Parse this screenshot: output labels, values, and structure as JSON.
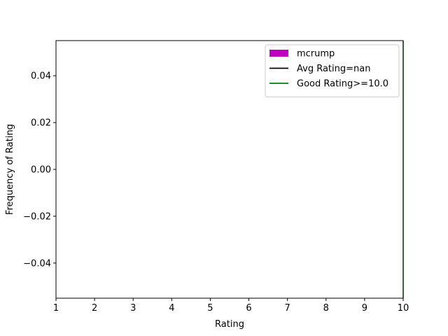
{
  "chart_data": {
    "type": "bar",
    "xlabel": "Rating",
    "ylabel": "Frequency of Rating",
    "xlim": [
      1,
      10
    ],
    "ylim": [
      -0.055,
      0.055
    ],
    "x_ticks": [
      1,
      2,
      3,
      4,
      5,
      6,
      7,
      8,
      9,
      10
    ],
    "y_ticks": [
      {
        "value": 0.04,
        "label": "0.04"
      },
      {
        "value": 0.02,
        "label": "0.02"
      },
      {
        "value": 0.0,
        "label": "0.00"
      },
      {
        "value": -0.02,
        "label": "−0.02"
      },
      {
        "value": -0.04,
        "label": "−0.04"
      }
    ],
    "grid": false,
    "legend_placement": "top-right",
    "series": [
      {
        "name": "mcrump",
        "kind": "bar",
        "color": "#bf00bf",
        "values": []
      },
      {
        "name": "Avg Rating=nan",
        "kind": "vline",
        "color": "#000000",
        "x": null
      },
      {
        "name": "Good Rating>=10.0",
        "kind": "vline",
        "color": "#008000",
        "x": 10.0
      }
    ]
  }
}
